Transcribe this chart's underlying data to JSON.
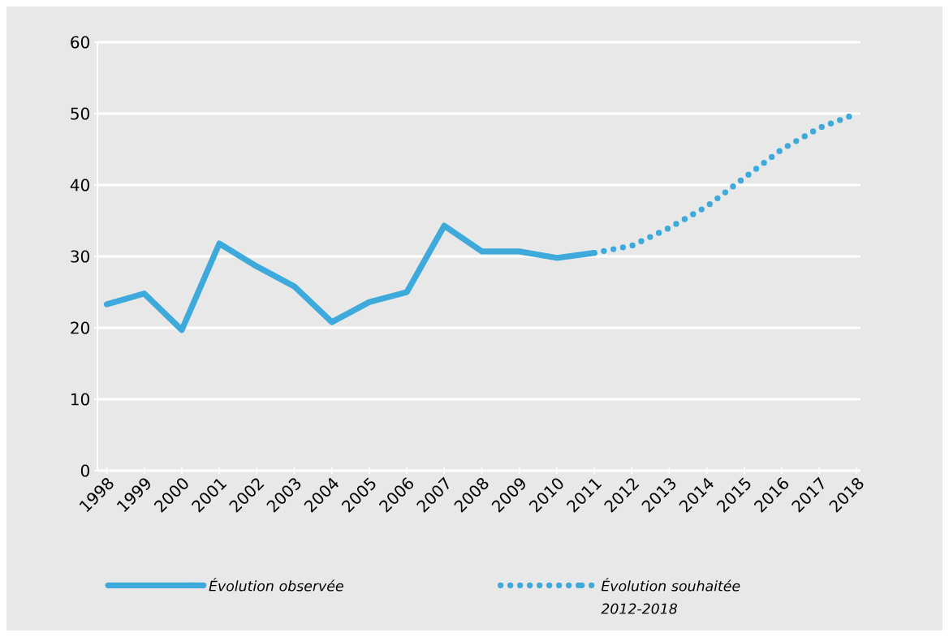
{
  "chart_data": {
    "type": "line",
    "categories": [
      "1998",
      "1999",
      "2000",
      "2001",
      "2002",
      "2003",
      "2004",
      "2005",
      "2006",
      "2007",
      "2008",
      "2009",
      "2010",
      "2011",
      "2012",
      "2013",
      "2014",
      "2015",
      "2016",
      "2017",
      "2018"
    ],
    "series": [
      {
        "name": "Évolution observée",
        "color": "#3eaadc",
        "line_style": "solid",
        "values": [
          23.3,
          24.8,
          19.7,
          31.8,
          28.6,
          25.8,
          20.8,
          23.6,
          25,
          34.3,
          30.7,
          30.7,
          29.8,
          30.5,
          null,
          null,
          null,
          null,
          null,
          null,
          null
        ]
      },
      {
        "name": "Évolution souhaitée 2012-2018",
        "color": "#3eaadc",
        "line_style": "dotted",
        "values": [
          null,
          null,
          null,
          null,
          null,
          null,
          null,
          null,
          null,
          null,
          null,
          null,
          null,
          30.5,
          31.5,
          34,
          37,
          41,
          45,
          48,
          50
        ]
      }
    ],
    "ylim": [
      0,
      60
    ],
    "yticks": [
      0,
      10,
      20,
      30,
      40,
      50,
      60
    ],
    "grid": "y",
    "legend": "bottom",
    "marker": "none"
  }
}
